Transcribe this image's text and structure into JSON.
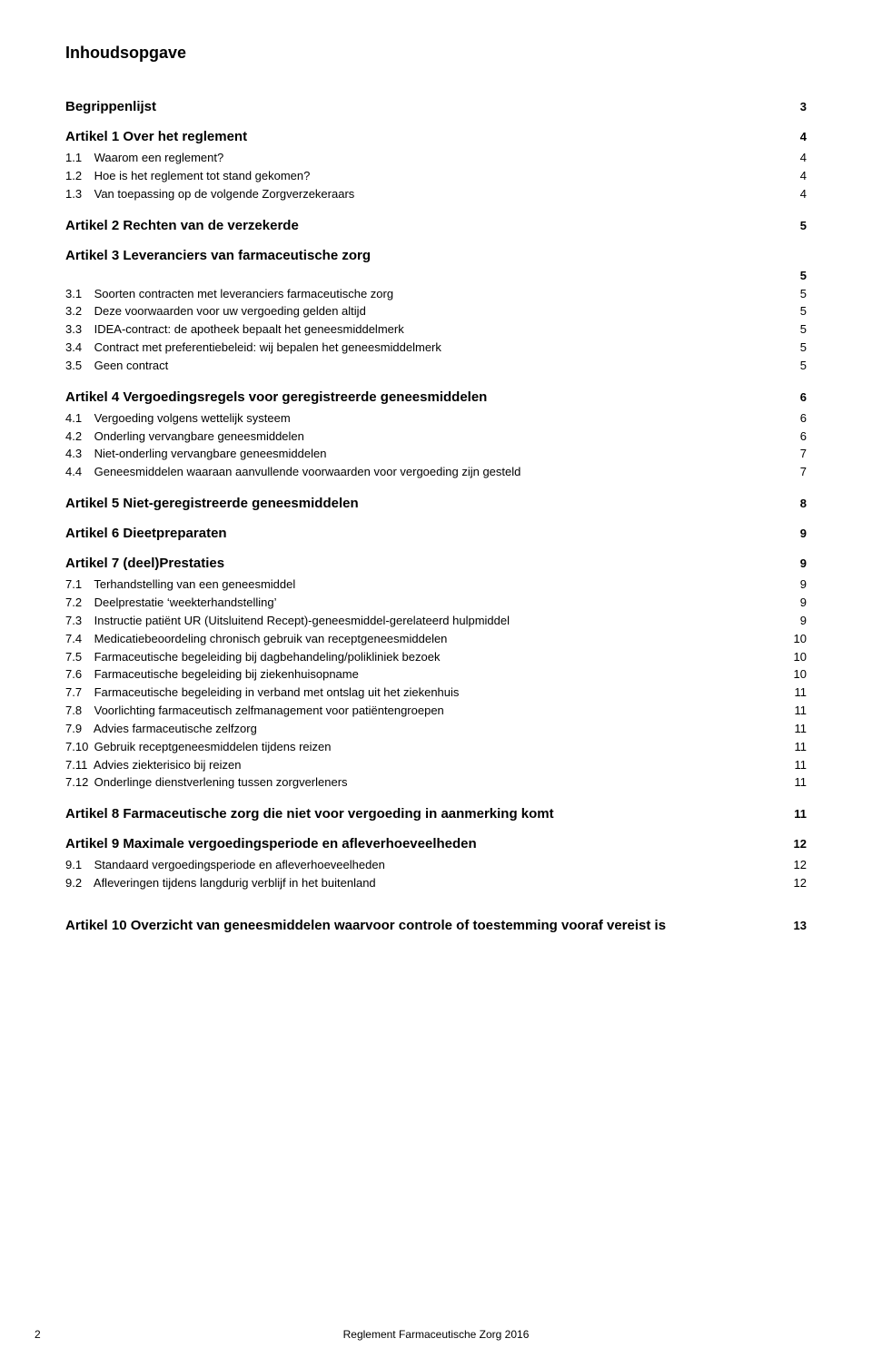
{
  "title": "Inhoudsopgave",
  "sections": [
    {
      "heading": "Begrippenlijst",
      "page": "3",
      "items": []
    },
    {
      "heading": "Artikel 1 Over het reglement",
      "page": "4",
      "items": [
        {
          "num": "1.1",
          "label": "Waarom een reglement?",
          "page": "4"
        },
        {
          "num": "1.2",
          "label": "Hoe is het reglement tot stand gekomen?",
          "page": "4"
        },
        {
          "num": "1.3",
          "label": "Van toepassing op de volgende Zorgverzekeraars",
          "page": "4"
        }
      ]
    },
    {
      "heading": "Artikel 2 Rechten van de verzekerde",
      "page": "5",
      "items": []
    },
    {
      "heading": "Artikel 3 Leveranciers van farmaceutische zorg",
      "page": "",
      "trailing_page": "5",
      "items": [
        {
          "num": "3.1",
          "label": "Soorten contracten met leveranciers farmaceutische zorg",
          "page": "5"
        },
        {
          "num": "3.2",
          "label": "Deze voorwaarden voor uw vergoeding gelden altijd",
          "page": "5"
        },
        {
          "num": "3.3",
          "label": "IDEA-contract: de apotheek bepaalt het geneesmiddelmerk",
          "page": "5"
        },
        {
          "num": "3.4",
          "label": "Contract met preferentiebeleid: wij bepalen het geneesmiddelmerk",
          "page": "5"
        },
        {
          "num": "3.5",
          "label": "Geen contract",
          "page": "5"
        }
      ]
    },
    {
      "heading": "Artikel 4 Vergoedingsregels voor geregistreerde geneesmiddelen",
      "page": "6",
      "items": [
        {
          "num": "4.1",
          "label": "Vergoeding volgens wettelijk systeem",
          "page": "6"
        },
        {
          "num": "4.2",
          "label": "Onderling vervangbare geneesmiddelen",
          "page": "6"
        },
        {
          "num": "4.3",
          "label": "Niet-onderling vervangbare geneesmiddelen",
          "page": "7"
        },
        {
          "num": "4.4",
          "label": "Geneesmiddelen waaraan aanvullende voorwaarden voor vergoeding zijn gesteld",
          "page": "7"
        }
      ]
    },
    {
      "heading": "Artikel 5 Niet-geregistreerde geneesmiddelen",
      "page": "8",
      "items": []
    },
    {
      "heading": "Artikel 6 Dieetpreparaten",
      "page": "9",
      "items": []
    },
    {
      "heading": "Artikel 7 (deel)Prestaties",
      "page": "9",
      "items": [
        {
          "num": "7.1",
          "label": "Terhandstelling van een geneesmiddel",
          "page": "9"
        },
        {
          "num": "7.2",
          "label": "Deelprestatie ‘weekterhandstelling’",
          "page": "9"
        },
        {
          "num": "7.3",
          "label": "Instructie patiënt UR (Uitsluitend Recept)-geneesmiddel-gerelateerd hulpmiddel",
          "page": "9"
        },
        {
          "num": "7.4",
          "label": "Medicatiebeoordeling chronisch gebruik van receptgeneesmiddelen",
          "page": "10"
        },
        {
          "num": "7.5",
          "label": "Farmaceutische begeleiding bij dagbehandeling/polikliniek bezoek",
          "page": "10"
        },
        {
          "num": "7.6",
          "label": "Farmaceutische begeleiding bij ziekenhuisopname",
          "page": "10"
        },
        {
          "num": "7.7",
          "label": "Farmaceutische begeleiding in verband met ontslag uit het ziekenhuis",
          "page": "11"
        },
        {
          "num": "7.8",
          "label": "Voorlichting farmaceutisch zelfmanagement voor patiëntengroepen",
          "page": "11"
        },
        {
          "num": "7.9",
          "label": "Advies farmaceutische zelfzorg",
          "page": "11"
        },
        {
          "num": "7.10",
          "label": "Gebruik receptgeneesmiddelen tijdens reizen",
          "page": "11"
        },
        {
          "num": "7.11",
          "label": "Advies ziekterisico bij reizen",
          "page": "11"
        },
        {
          "num": "7.12",
          "label": "Onderlinge dienstverlening tussen zorgverleners",
          "page": "11"
        }
      ]
    },
    {
      "heading": "Artikel 8 Farmaceutische zorg die niet voor vergoeding in aanmerking komt",
      "page": "11",
      "items": []
    },
    {
      "heading": "Artikel 9 Maximale vergoedingsperiode en afleverhoeveelheden",
      "page": "12",
      "items": [
        {
          "num": "9.1",
          "label": "Standaard vergoedingsperiode en afleverhoeveelheden",
          "page": "12"
        },
        {
          "num": "9.2",
          "label": "Afleveringen tijdens langdurig verblijf in het buitenland",
          "page": "12"
        }
      ]
    }
  ],
  "last_section": {
    "heading": "Artikel 10 Overzicht van geneesmiddelen waarvoor controle of toestemming vooraf vereist is",
    "page": "13"
  },
  "footer": "Reglement Farmaceutische Zorg 2016",
  "footer_page": "2"
}
